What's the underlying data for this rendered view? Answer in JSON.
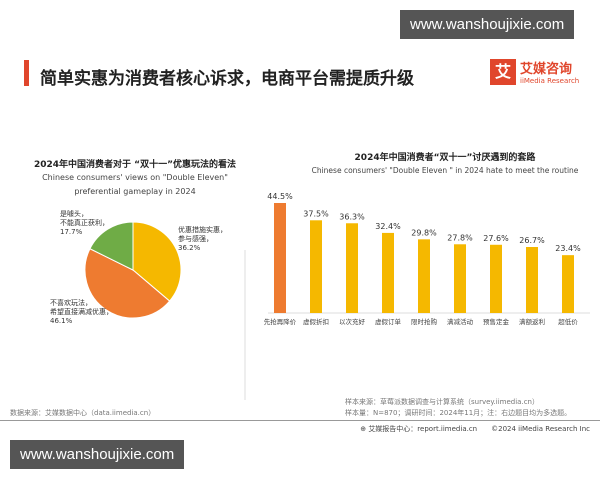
{
  "watermark": "www.wanshoujixie.com",
  "header": {
    "title": "简单实惠为消费者核心诉求，电商平台需提质升级",
    "logo_mark": "艾",
    "logo_cn": "艾媒咨询",
    "logo_en": "iiMedia Research"
  },
  "chart_data": [
    {
      "type": "pie",
      "title": "2024年中国消费者对于 “双十一”优惠玩法的看法",
      "subtitle": "Chinese consumers' views on \"Double Eleven\" preferential gameplay in 2024",
      "slices": [
        {
          "label": "优惠措施实惠，参与感强",
          "value": 36.2,
          "color": "#f5b800"
        },
        {
          "label": "不喜欢玩法，希望直接满减优惠",
          "value": 46.1,
          "color": "#ee7b30"
        },
        {
          "label": "是噱头，不能真正获利",
          "value": 17.7,
          "color": "#6fac46"
        }
      ]
    },
    {
      "type": "bar",
      "title": "2024年中国消费者“双十一”讨厌遇到的套路",
      "subtitle": "Chinese consumers' \"Double Eleven \" in 2024 hate to meet the routine",
      "categories": [
        "先抢再降价",
        "虚假折扣",
        "以次充好",
        "虚假订单",
        "限时抢购",
        "满减活动",
        "预售定金",
        "满额返利",
        "超低价"
      ],
      "values": [
        44.5,
        37.5,
        36.3,
        32.4,
        29.8,
        27.8,
        27.6,
        26.7,
        23.4
      ],
      "colors": {
        "first": "#ee7b30",
        "rest": "#f5b800"
      },
      "ylim": [
        0,
        50
      ]
    }
  ],
  "footer": {
    "source": "数据来源：艾媒数据中心（data.iimedia.cn）",
    "sample_source": "样本来源：草莓派数据调查与计算系统（survey.iimedia.cn）",
    "sample_info": "样本量：N=870；调研时间：2024年11月；注：右边题目均为多选题。",
    "report": "艾媒报告中心：report.iimedia.cn",
    "copyright": "©2024  iiMedia Research  Inc"
  }
}
